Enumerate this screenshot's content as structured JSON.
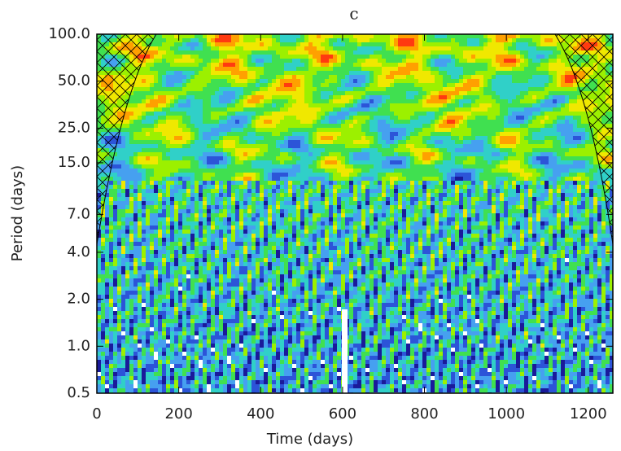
{
  "chart_data": {
    "type": "wavelet-power",
    "title": "c",
    "x_label": "Time (days)",
    "y_label": "Period (days)",
    "xlim": [
      0,
      1260
    ],
    "xticks": [
      0,
      200,
      400,
      600,
      800,
      1000,
      1200
    ],
    "ylim": [
      0.5,
      100
    ],
    "y_scale": "log",
    "yticks": [
      {
        "value": 100,
        "label": "100.0"
      },
      {
        "value": 50,
        "label": "50.0"
      },
      {
        "value": 25,
        "label": "25.0"
      },
      {
        "value": 15,
        "label": "15.0"
      },
      {
        "value": 7,
        "label": "7.0"
      },
      {
        "value": 4,
        "label": "4.0"
      },
      {
        "value": 2,
        "label": "2.0"
      },
      {
        "value": 1,
        "label": "1.0"
      },
      {
        "value": 0.5,
        "label": "0.5"
      }
    ]
  }
}
